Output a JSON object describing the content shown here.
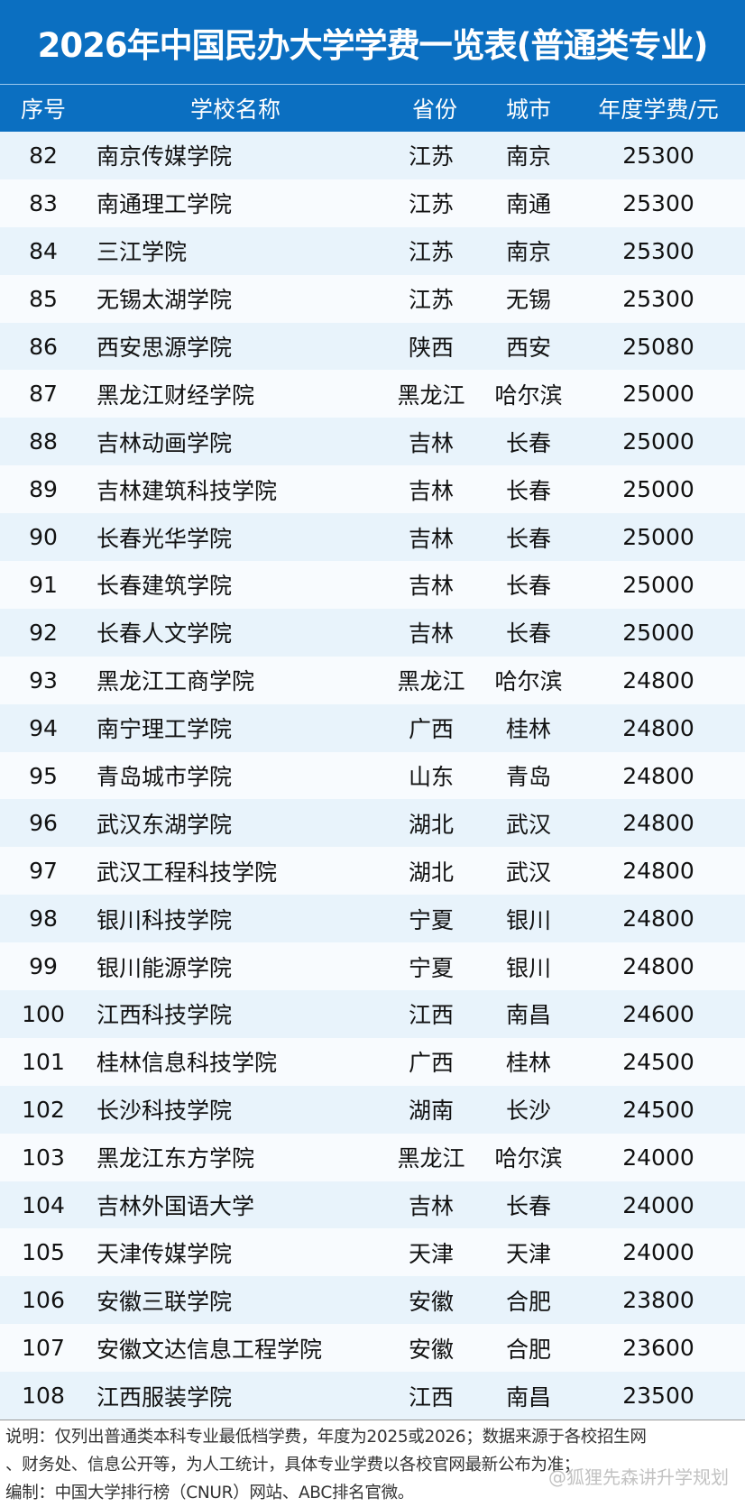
{
  "title": "2026年中国民办大学学费一览表(普通类专业)",
  "columns": [
    "序号",
    "学校名称",
    "省份",
    "城市",
    "年度学费/元"
  ],
  "rows": [
    [
      "82",
      "南京传媒学院",
      "江苏",
      "南京",
      "25300"
    ],
    [
      "83",
      "南通理工学院",
      "江苏",
      "南通",
      "25300"
    ],
    [
      "84",
      "三江学院",
      "江苏",
      "南京",
      "25300"
    ],
    [
      "85",
      "无锡太湖学院",
      "江苏",
      "无锡",
      "25300"
    ],
    [
      "86",
      "西安思源学院",
      "陕西",
      "西安",
      "25080"
    ],
    [
      "87",
      "黑龙江财经学院",
      "黑龙江",
      "哈尔滨",
      "25000"
    ],
    [
      "88",
      "吉林动画学院",
      "吉林",
      "长春",
      "25000"
    ],
    [
      "89",
      "吉林建筑科技学院",
      "吉林",
      "长春",
      "25000"
    ],
    [
      "90",
      "长春光华学院",
      "吉林",
      "长春",
      "25000"
    ],
    [
      "91",
      "长春建筑学院",
      "吉林",
      "长春",
      "25000"
    ],
    [
      "92",
      "长春人文学院",
      "吉林",
      "长春",
      "25000"
    ],
    [
      "93",
      "黑龙江工商学院",
      "黑龙江",
      "哈尔滨",
      "24800"
    ],
    [
      "94",
      "南宁理工学院",
      "广西",
      "桂林",
      "24800"
    ],
    [
      "95",
      "青岛城市学院",
      "山东",
      "青岛",
      "24800"
    ],
    [
      "96",
      "武汉东湖学院",
      "湖北",
      "武汉",
      "24800"
    ],
    [
      "97",
      "武汉工程科技学院",
      "湖北",
      "武汉",
      "24800"
    ],
    [
      "98",
      "银川科技学院",
      "宁夏",
      "银川",
      "24800"
    ],
    [
      "99",
      "银川能源学院",
      "宁夏",
      "银川",
      "24800"
    ],
    [
      "100",
      "江西科技学院",
      "江西",
      "南昌",
      "24600"
    ],
    [
      "101",
      "桂林信息科技学院",
      "广西",
      "桂林",
      "24500"
    ],
    [
      "102",
      "长沙科技学院",
      "湖南",
      "长沙",
      "24500"
    ],
    [
      "103",
      "黑龙江东方学院",
      "黑龙江",
      "哈尔滨",
      "24000"
    ],
    [
      "104",
      "吉林外国语大学",
      "吉林",
      "长春",
      "24000"
    ],
    [
      "105",
      "天津传媒学院",
      "天津",
      "天津",
      "24000"
    ],
    [
      "106",
      "安徽三联学院",
      "安徽",
      "合肥",
      "23800"
    ],
    [
      "107",
      "安徽文达信息工程学院",
      "安徽",
      "合肥",
      "23600"
    ],
    [
      "108",
      "江西服装学院",
      "江西",
      "南昌",
      "23500"
    ]
  ],
  "footer": {
    "line1": "说明：仅列出普通类本科专业最低档学费，年度为2025或2026；数据来源于各校招生网",
    "line2": "、财务处、信息公开等，为人工统计，具体专业学费以各校官网最新公布为准；",
    "line3": "编制：中国大学排行榜（CNUR）网站、ABC排名官微。"
  },
  "watermark": "@狐狸先森讲升学规划",
  "colors": {
    "header_blue": "#0b6fc1",
    "row_alt": "#e8f3fb"
  }
}
